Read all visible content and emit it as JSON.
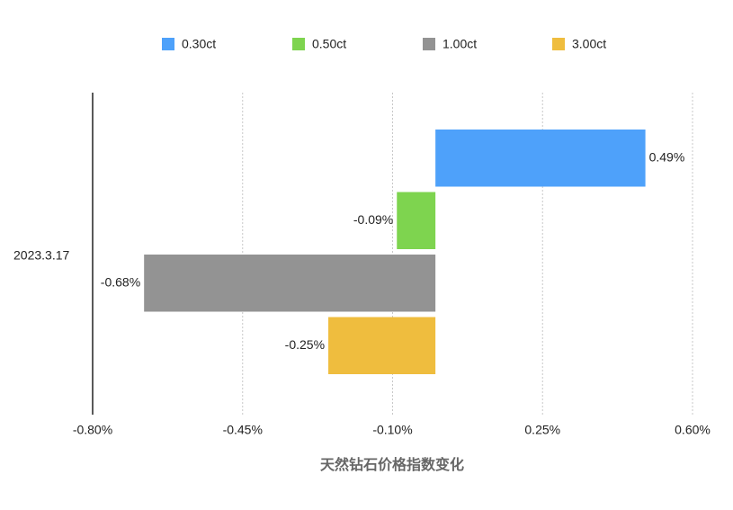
{
  "chart_data": {
    "type": "hbar",
    "x_label": "天然钻石价格指数变化",
    "categories": [
      "2023.3.17"
    ],
    "series": [
      {
        "name": "0.30ct",
        "color": "#4ea1fa",
        "values": [
          0.49
        ],
        "value_labels": [
          "0.49%"
        ]
      },
      {
        "name": "0.50ct",
        "color": "#7ed44f",
        "values": [
          -0.09
        ],
        "value_labels": [
          "-0.09%"
        ]
      },
      {
        "name": "1.00ct",
        "color": "#939393",
        "values": [
          -0.68
        ],
        "value_labels": [
          "-0.68%"
        ]
      },
      {
        "name": "3.00ct",
        "color": "#efbd3e",
        "values": [
          -0.25
        ],
        "value_labels": [
          "-0.25%"
        ]
      }
    ],
    "xlim": [
      -0.8,
      0.6
    ],
    "xticks": [
      {
        "value": -0.8,
        "label": "-0.80%"
      },
      {
        "value": -0.45,
        "label": "-0.45%"
      },
      {
        "value": -0.1,
        "label": "-0.10%"
      },
      {
        "value": 0.25,
        "label": "0.25%"
      },
      {
        "value": 0.6,
        "label": "0.60%"
      }
    ],
    "grid": true,
    "legend": "top"
  }
}
